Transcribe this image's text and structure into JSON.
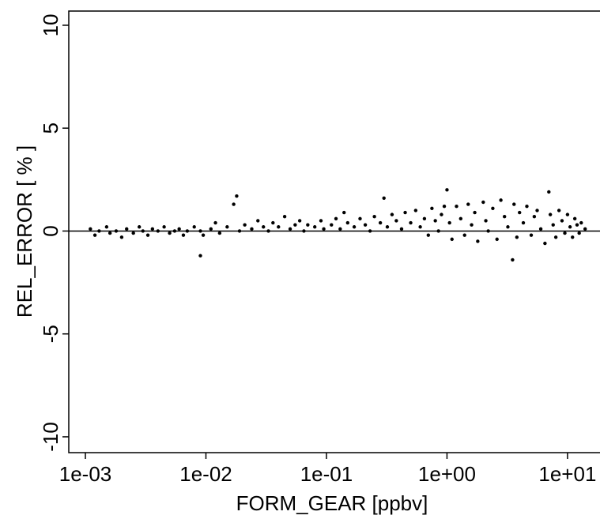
{
  "chart_data": {
    "type": "scatter",
    "x_label": "FORM_GEAR [ppbv]",
    "y_label": "REL_ERROR [ % ]",
    "log_x": true,
    "xlim": [
      0.000728,
      18.6
    ],
    "ylim": [
      -10.77,
      10.69
    ],
    "xticks": [
      {
        "value": 0.001,
        "label": "1e-03"
      },
      {
        "value": 0.01,
        "label": "1e-02"
      },
      {
        "value": 0.1,
        "label": "1e-01"
      },
      {
        "value": 1,
        "label": "1e+00"
      },
      {
        "value": 10,
        "label": "1e+01"
      }
    ],
    "yticks": [
      -10,
      -5,
      0,
      5,
      10
    ],
    "hlines": [
      0
    ],
    "color": "#000000",
    "x": [
      0.0011,
      0.0012,
      0.0013,
      0.0015,
      0.0016,
      0.0018,
      0.002,
      0.0022,
      0.0025,
      0.0028,
      0.003,
      0.0033,
      0.0036,
      0.004,
      0.0045,
      0.005,
      0.0055,
      0.006,
      0.0065,
      0.007,
      0.008,
      0.009,
      0.0095,
      0.009,
      0.011,
      0.012,
      0.013,
      0.015,
      0.017,
      0.018,
      0.019,
      0.021,
      0.024,
      0.027,
      0.03,
      0.033,
      0.036,
      0.04,
      0.045,
      0.05,
      0.055,
      0.06,
      0.065,
      0.07,
      0.08,
      0.09,
      0.095,
      0.11,
      0.12,
      0.13,
      0.14,
      0.15,
      0.17,
      0.19,
      0.21,
      0.23,
      0.25,
      0.28,
      0.3,
      0.32,
      0.35,
      0.38,
      0.42,
      0.45,
      0.5,
      0.55,
      0.6,
      0.65,
      0.7,
      0.75,
      0.8,
      0.85,
      0.9,
      0.95,
      1.0,
      1.05,
      1.1,
      1.2,
      1.3,
      1.4,
      1.5,
      1.6,
      1.7,
      1.8,
      2.0,
      2.1,
      2.2,
      2.4,
      2.6,
      2.8,
      3.0,
      3.2,
      3.5,
      3.6,
      3.8,
      4.0,
      4.3,
      4.6,
      5.0,
      5.3,
      5.6,
      6.0,
      6.5,
      7.0,
      7.2,
      7.6,
      8.0,
      8.5,
      9.0,
      9.5,
      10,
      10.5,
      11,
      11.5,
      12,
      12.5,
      13,
      14
    ],
    "y": [
      0.1,
      -0.2,
      0.0,
      0.2,
      -0.1,
      0.0,
      -0.3,
      0.1,
      -0.1,
      0.2,
      0.0,
      -0.2,
      0.1,
      0.0,
      0.2,
      -0.1,
      0.0,
      0.1,
      -0.2,
      0.0,
      0.2,
      0.0,
      -0.2,
      -1.2,
      0.1,
      0.4,
      -0.1,
      0.2,
      1.3,
      1.7,
      0.0,
      0.3,
      0.1,
      0.5,
      0.2,
      0.0,
      0.4,
      0.2,
      0.7,
      0.1,
      0.3,
      0.5,
      0.0,
      0.3,
      0.2,
      0.5,
      0.1,
      0.3,
      0.6,
      0.1,
      0.9,
      0.4,
      0.2,
      0.6,
      0.3,
      0.0,
      0.7,
      0.4,
      1.6,
      0.2,
      0.8,
      0.5,
      0.1,
      0.9,
      0.4,
      1.0,
      0.2,
      0.6,
      -0.2,
      1.1,
      0.5,
      0.0,
      0.8,
      1.2,
      2.0,
      0.4,
      -0.4,
      1.2,
      0.6,
      -0.2,
      1.3,
      0.3,
      0.9,
      -0.5,
      1.4,
      0.5,
      0.0,
      1.1,
      -0.4,
      1.5,
      0.7,
      0.2,
      -1.4,
      1.3,
      -0.3,
      0.9,
      0.4,
      1.2,
      -0.2,
      0.7,
      1.0,
      0.1,
      -0.6,
      1.9,
      0.8,
      0.3,
      -0.3,
      1.0,
      0.5,
      -0.1,
      0.8,
      0.2,
      -0.3,
      0.6,
      0.3,
      -0.1,
      0.4,
      0.1
    ]
  }
}
